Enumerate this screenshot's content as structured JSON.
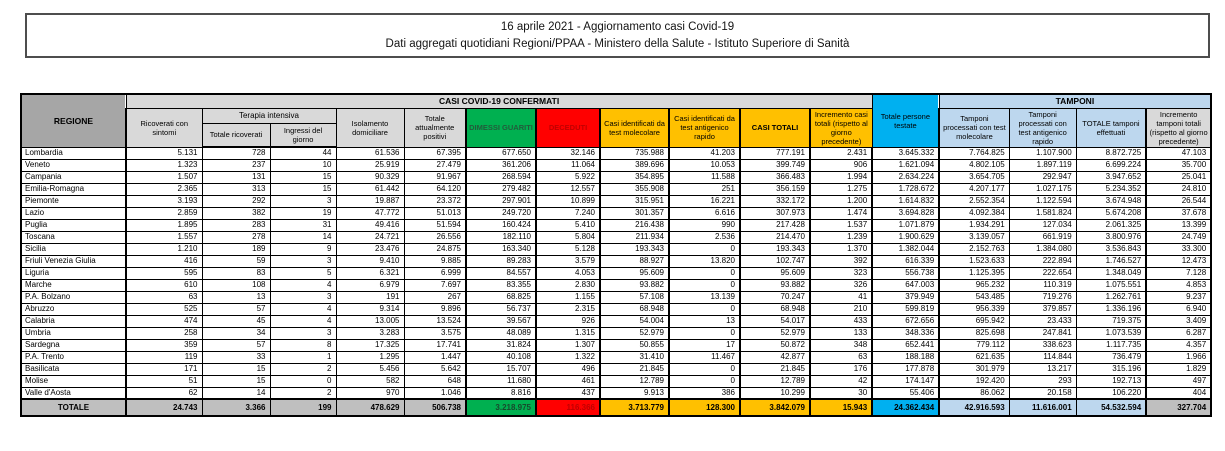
{
  "title": {
    "line1": "16 aprile 2021 - Aggiornamento casi Covid-19",
    "line2": "Dati aggregati quotidiani Regioni/PPAA - Ministero della Salute - Istituto Superiore di Sanità"
  },
  "colors": {
    "green": "#00B050",
    "red": "#FF0000",
    "gold": "#FFC000",
    "cyan": "#00B0F0",
    "light_blue": "#BDD7EE",
    "header_gray": "#D9D9D9",
    "regione_gray": "#A6A6A6",
    "totale_row_gray": "#BFBFBF"
  },
  "table": {
    "header": {
      "regione": "REGIONE",
      "casi_band": "CASI COVID-19 CONFERMATI",
      "tamponi_band": "TAMPONI",
      "terapia_band": "Terapia intensiva",
      "ricoverati": "Ricoverati con sintomi",
      "totale_ricoverati": "Totale ricoverati",
      "ingressi": "Ingressi del giorno",
      "isolamento": "Isolamento domiciliare",
      "positivi": "Totale attualmente positivi",
      "dimessi": "DIMESSI GUARITI",
      "deceduti": "DECEDUTI",
      "casi_molecolare": "Casi identificati da test molecolare",
      "casi_antigenico": "Casi identificati da test antigenico rapido",
      "casi_totali": "CASI TOTALI",
      "incremento_casi": "Incremento casi totali (rispetto al giorno precedente)",
      "persone_testate": "Totale persone testate",
      "tamponi_molecolare": "Tamponi processati con test molecolare",
      "tamponi_antigenico": "Tamponi processati con test antigenico rapido",
      "tamponi_totale": "TOTALE tamponi effettuati",
      "incremento_tamponi": "Incremento tamponi totali (rispetto al giorno precedente)"
    },
    "rows": [
      {
        "regione": "Lombardia",
        "values": [
          "5.131",
          "728",
          "44",
          "61.536",
          "67.395",
          "677.650",
          "32.146",
          "735.988",
          "41.203",
          "777.191",
          "2.431",
          "3.645.332",
          "7.764.825",
          "1.107.900",
          "8.872.725",
          "47.103"
        ]
      },
      {
        "regione": "Veneto",
        "values": [
          "1.323",
          "237",
          "10",
          "25.919",
          "27.479",
          "361.206",
          "11.064",
          "389.696",
          "10.053",
          "399.749",
          "906",
          "1.621.094",
          "4.802.105",
          "1.897.119",
          "6.699.224",
          "35.700"
        ]
      },
      {
        "regione": "Campania",
        "values": [
          "1.507",
          "131",
          "15",
          "90.329",
          "91.967",
          "268.594",
          "5.922",
          "354.895",
          "11.588",
          "366.483",
          "1.994",
          "2.634.224",
          "3.654.705",
          "292.947",
          "3.947.652",
          "25.041"
        ]
      },
      {
        "regione": "Emilia-Romagna",
        "values": [
          "2.365",
          "313",
          "15",
          "61.442",
          "64.120",
          "279.482",
          "12.557",
          "355.908",
          "251",
          "356.159",
          "1.275",
          "1.728.672",
          "4.207.177",
          "1.027.175",
          "5.234.352",
          "24.810"
        ]
      },
      {
        "regione": "Piemonte",
        "values": [
          "3.193",
          "292",
          "3",
          "19.887",
          "23.372",
          "297.901",
          "10.899",
          "315.951",
          "16.221",
          "332.172",
          "1.200",
          "1.614.832",
          "2.552.354",
          "1.122.594",
          "3.674.948",
          "26.544"
        ]
      },
      {
        "regione": "Lazio",
        "values": [
          "2.859",
          "382",
          "19",
          "47.772",
          "51.013",
          "249.720",
          "7.240",
          "301.357",
          "6.616",
          "307.973",
          "1.474",
          "3.694.828",
          "4.092.384",
          "1.581.824",
          "5.674.208",
          "37.678"
        ]
      },
      {
        "regione": "Puglia",
        "values": [
          "1.895",
          "283",
          "31",
          "49.416",
          "51.594",
          "160.424",
          "5.410",
          "216.438",
          "990",
          "217.428",
          "1.537",
          "1.071.879",
          "1.934.291",
          "127.034",
          "2.061.325",
          "13.399"
        ]
      },
      {
        "regione": "Toscana",
        "values": [
          "1.557",
          "278",
          "14",
          "24.721",
          "26.556",
          "182.110",
          "5.804",
          "211.934",
          "2.536",
          "214.470",
          "1.239",
          "1.900.629",
          "3.139.057",
          "661.919",
          "3.800.976",
          "24.749"
        ]
      },
      {
        "regione": "Sicilia",
        "values": [
          "1.210",
          "189",
          "9",
          "23.476",
          "24.875",
          "163.340",
          "5.128",
          "193.343",
          "0",
          "193.343",
          "1.370",
          "1.382.044",
          "2.152.763",
          "1.384.080",
          "3.536.843",
          "33.300"
        ]
      },
      {
        "regione": "Friuli Venezia Giulia",
        "values": [
          "416",
          "59",
          "3",
          "9.410",
          "9.885",
          "89.283",
          "3.579",
          "88.927",
          "13.820",
          "102.747",
          "392",
          "616.339",
          "1.523.633",
          "222.894",
          "1.746.527",
          "12.473"
        ]
      },
      {
        "regione": "Liguria",
        "values": [
          "595",
          "83",
          "5",
          "6.321",
          "6.999",
          "84.557",
          "4.053",
          "95.609",
          "0",
          "95.609",
          "323",
          "556.738",
          "1.125.395",
          "222.654",
          "1.348.049",
          "7.128"
        ]
      },
      {
        "regione": "Marche",
        "values": [
          "610",
          "108",
          "4",
          "6.979",
          "7.697",
          "83.355",
          "2.830",
          "93.882",
          "0",
          "93.882",
          "326",
          "647.003",
          "965.232",
          "110.319",
          "1.075.551",
          "4.853"
        ]
      },
      {
        "regione": "P.A. Bolzano",
        "values": [
          "63",
          "13",
          "3",
          "191",
          "267",
          "68.825",
          "1.155",
          "57.108",
          "13.139",
          "70.247",
          "41",
          "379.949",
          "543.485",
          "719.276",
          "1.262.761",
          "9.237"
        ]
      },
      {
        "regione": "Abruzzo",
        "values": [
          "525",
          "57",
          "4",
          "9.314",
          "9.896",
          "56.737",
          "2.315",
          "68.948",
          "0",
          "68.948",
          "210",
          "599.819",
          "956.339",
          "379.857",
          "1.336.196",
          "6.940"
        ]
      },
      {
        "regione": "Calabria",
        "values": [
          "474",
          "45",
          "4",
          "13.005",
          "13.524",
          "39.567",
          "926",
          "54.004",
          "13",
          "54.017",
          "433",
          "672.656",
          "695.942",
          "23.433",
          "719.375",
          "3.409"
        ]
      },
      {
        "regione": "Umbria",
        "values": [
          "258",
          "34",
          "3",
          "3.283",
          "3.575",
          "48.089",
          "1.315",
          "52.979",
          "0",
          "52.979",
          "133",
          "348.336",
          "825.698",
          "247.841",
          "1.073.539",
          "6.287"
        ]
      },
      {
        "regione": "Sardegna",
        "values": [
          "359",
          "57",
          "8",
          "17.325",
          "17.741",
          "31.824",
          "1.307",
          "50.855",
          "17",
          "50.872",
          "348",
          "652.441",
          "779.112",
          "338.623",
          "1.117.735",
          "4.357"
        ]
      },
      {
        "regione": "P.A. Trento",
        "values": [
          "119",
          "33",
          "1",
          "1.295",
          "1.447",
          "40.108",
          "1.322",
          "31.410",
          "11.467",
          "42.877",
          "63",
          "188.188",
          "621.635",
          "114.844",
          "736.479",
          "1.966"
        ]
      },
      {
        "regione": "Basilicata",
        "values": [
          "171",
          "15",
          "2",
          "5.456",
          "5.642",
          "15.707",
          "496",
          "21.845",
          "0",
          "21.845",
          "176",
          "177.878",
          "301.979",
          "13.217",
          "315.196",
          "1.829"
        ]
      },
      {
        "regione": "Molise",
        "values": [
          "51",
          "15",
          "0",
          "582",
          "648",
          "11.680",
          "461",
          "12.789",
          "0",
          "12.789",
          "42",
          "174.147",
          "192.420",
          "293",
          "192.713",
          "497"
        ]
      },
      {
        "regione": "Valle d'Aosta",
        "values": [
          "62",
          "14",
          "2",
          "970",
          "1.046",
          "8.816",
          "437",
          "9.913",
          "386",
          "10.299",
          "30",
          "55.406",
          "86.062",
          "20.158",
          "106.220",
          "404"
        ]
      }
    ],
    "totale": {
      "label": "TOTALE",
      "values": [
        "24.743",
        "3.366",
        "199",
        "478.629",
        "506.738",
        "3.218.975",
        "116.366",
        "3.713.779",
        "128.300",
        "3.842.079",
        "15.943",
        "24.362.434",
        "42.916.593",
        "11.616.001",
        "54.532.594",
        "327.704"
      ]
    }
  }
}
